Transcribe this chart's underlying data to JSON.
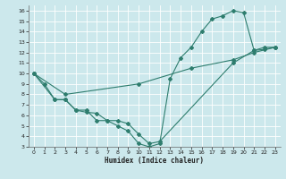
{
  "xlabel": "Humidex (Indice chaleur)",
  "bg_color": "#cce8ec",
  "grid_color": "#ffffff",
  "line_color": "#2e7d6e",
  "xlim": [
    -0.5,
    23.5
  ],
  "ylim": [
    3,
    16.5
  ],
  "xticks": [
    0,
    1,
    2,
    3,
    4,
    5,
    6,
    7,
    8,
    9,
    10,
    11,
    12,
    13,
    14,
    15,
    16,
    17,
    18,
    19,
    20,
    21,
    22,
    23
  ],
  "yticks": [
    3,
    4,
    5,
    6,
    7,
    8,
    9,
    10,
    11,
    12,
    13,
    14,
    15,
    16
  ],
  "line1_x": [
    0,
    1,
    2,
    3,
    4,
    5,
    6,
    7,
    8,
    9,
    10,
    11,
    12,
    13,
    14,
    15,
    16,
    17,
    18,
    19,
    20,
    21,
    22,
    23
  ],
  "line1_y": [
    10,
    9,
    7.5,
    7.5,
    6.5,
    6.5,
    5.5,
    5.5,
    5.0,
    4.5,
    3.3,
    3.0,
    3.3,
    9.5,
    11.5,
    12.5,
    14.0,
    15.2,
    15.5,
    16.0,
    15.8,
    12.2,
    12.3,
    12.5
  ],
  "line2_x": [
    0,
    2,
    3,
    4,
    5,
    6,
    7,
    8,
    9,
    10,
    11,
    12,
    19,
    21,
    22,
    23
  ],
  "line2_y": [
    10,
    7.5,
    7.5,
    6.5,
    6.3,
    6.2,
    5.5,
    5.5,
    5.2,
    4.2,
    3.3,
    3.5,
    11.0,
    12.2,
    12.5,
    12.5
  ],
  "line3_x": [
    0,
    3,
    10,
    15,
    19,
    21,
    23
  ],
  "line3_y": [
    10,
    8.0,
    9.0,
    10.5,
    11.3,
    12.0,
    12.5
  ]
}
